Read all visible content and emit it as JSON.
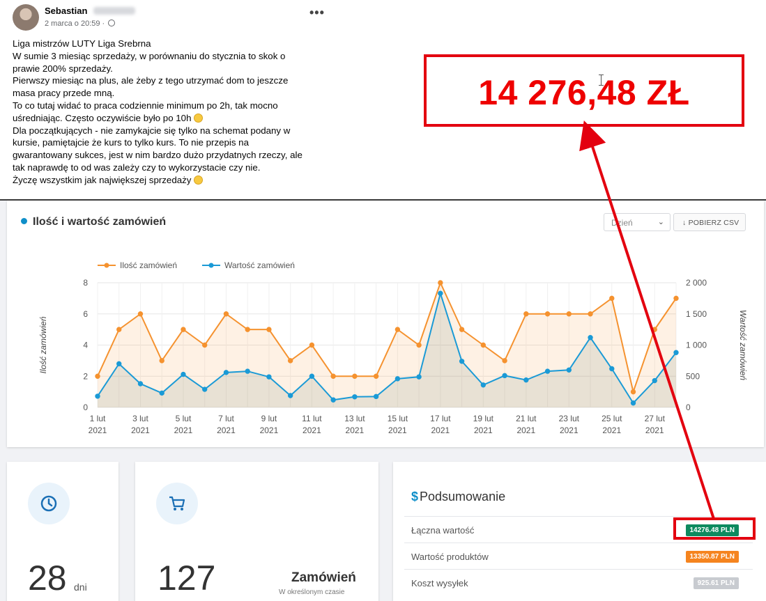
{
  "post": {
    "author": "Sebastian",
    "date": "2 marca o 20:59 ·",
    "more_icon": "ellipsis-icon",
    "lines": [
      "Liga mistrzów LUTY Liga Srebrna",
      "W sumie 3 miesiąc sprzedaży, w porównaniu do stycznia to skok o",
      "prawie 200% sprzedaży.",
      "Pierwszy miesiąc na plus, ale żeby z tego utrzymać dom to jeszcze",
      "masa pracy przede mną.",
      "To co tutaj widać to praca codziennie minimum po 2h, tak mocno",
      "uśredniając. Często oczywiście było po 10h",
      "Dla początkujących - nie zamykajcie się tylko na schemat podany w",
      "kursie, pamiętajcie że kurs to tylko kurs. To nie przepis na",
      "gwarantowany sukces, jest w nim bardzo dużo przydatnych rzeczy, ale",
      "tak naprawdę to od was zależy czy to wykorzystacie czy nie.",
      "Życzę wszystkim jak największej sprzedaży"
    ]
  },
  "callout": {
    "text": "14 276,48 ZŁ",
    "color": "#e3000f"
  },
  "dashboard": {
    "chart_title": "Ilość i wartość zamówień",
    "period_select": "Dzień",
    "csv_button": "↓ POBIERZ CSV",
    "days": {
      "value": "28",
      "unit": "dni"
    },
    "orders": {
      "value": "127",
      "label": "Zamówień",
      "sub": "W określonym czasie"
    },
    "summary": {
      "title": "Podsumowanie",
      "rows": [
        {
          "label": "Łączna wartość",
          "value": "14276.48 PLN",
          "color": "#0e8a5f"
        },
        {
          "label": "Wartość produktów",
          "value": "13350.87 PLN",
          "color": "#f5841f"
        },
        {
          "label": "Koszt wysyłek",
          "value": "925.61 PLN",
          "color": "#c8cbd0"
        }
      ]
    }
  },
  "chart_data": {
    "type": "line",
    "x": [
      "1 lut",
      "2 lut",
      "3 lut",
      "4 lut",
      "5 lut",
      "6 lut",
      "7 lut",
      "8 lut",
      "9 lut",
      "10 lut",
      "11 lut",
      "12 lut",
      "13 lut",
      "14 lut",
      "15 lut",
      "16 lut",
      "17 lut",
      "18 lut",
      "19 lut",
      "20 lut",
      "21 lut",
      "22 lut",
      "23 lut",
      "24 lut",
      "25 lut",
      "26 lut",
      "27 lut",
      "28 lut"
    ],
    "tick_labels": [
      "1 lut",
      "3 lut",
      "5 lut",
      "7 lut",
      "9 lut",
      "11 lut",
      "13 lut",
      "15 lut",
      "17 lut",
      "19 lut",
      "21 lut",
      "23 lut",
      "25 lut",
      "27 lut"
    ],
    "tick_year": "2021",
    "series": [
      {
        "name": "Ilość zamówień",
        "axis": "left",
        "color": "#f5922f",
        "values": [
          2,
          5,
          6,
          3,
          5,
          4,
          6,
          5,
          5,
          3,
          4,
          2,
          2,
          2,
          5,
          4,
          8,
          5,
          4,
          3,
          6,
          6,
          6,
          6,
          7,
          1,
          5,
          7
        ]
      },
      {
        "name": "Wartość zamówień",
        "axis": "right",
        "color": "#1a9ad6",
        "values": [
          180,
          700,
          380,
          230,
          530,
          290,
          560,
          580,
          490,
          190,
          500,
          120,
          170,
          175,
          460,
          490,
          1830,
          740,
          360,
          510,
          440,
          580,
          600,
          1120,
          620,
          70,
          430,
          880
        ]
      }
    ],
    "ylabel_left": "Ilość zamówień",
    "ylabel_right": "Wartość zamówień",
    "ylim_left": [
      0,
      8
    ],
    "ylim_right": [
      0,
      2000
    ],
    "yticks_left": [
      "0",
      "2",
      "4",
      "6",
      "8"
    ],
    "yticks_right": [
      "0",
      "500",
      "1 000",
      "1 500",
      "2 000"
    ],
    "grid": true,
    "legend": "top-left"
  }
}
